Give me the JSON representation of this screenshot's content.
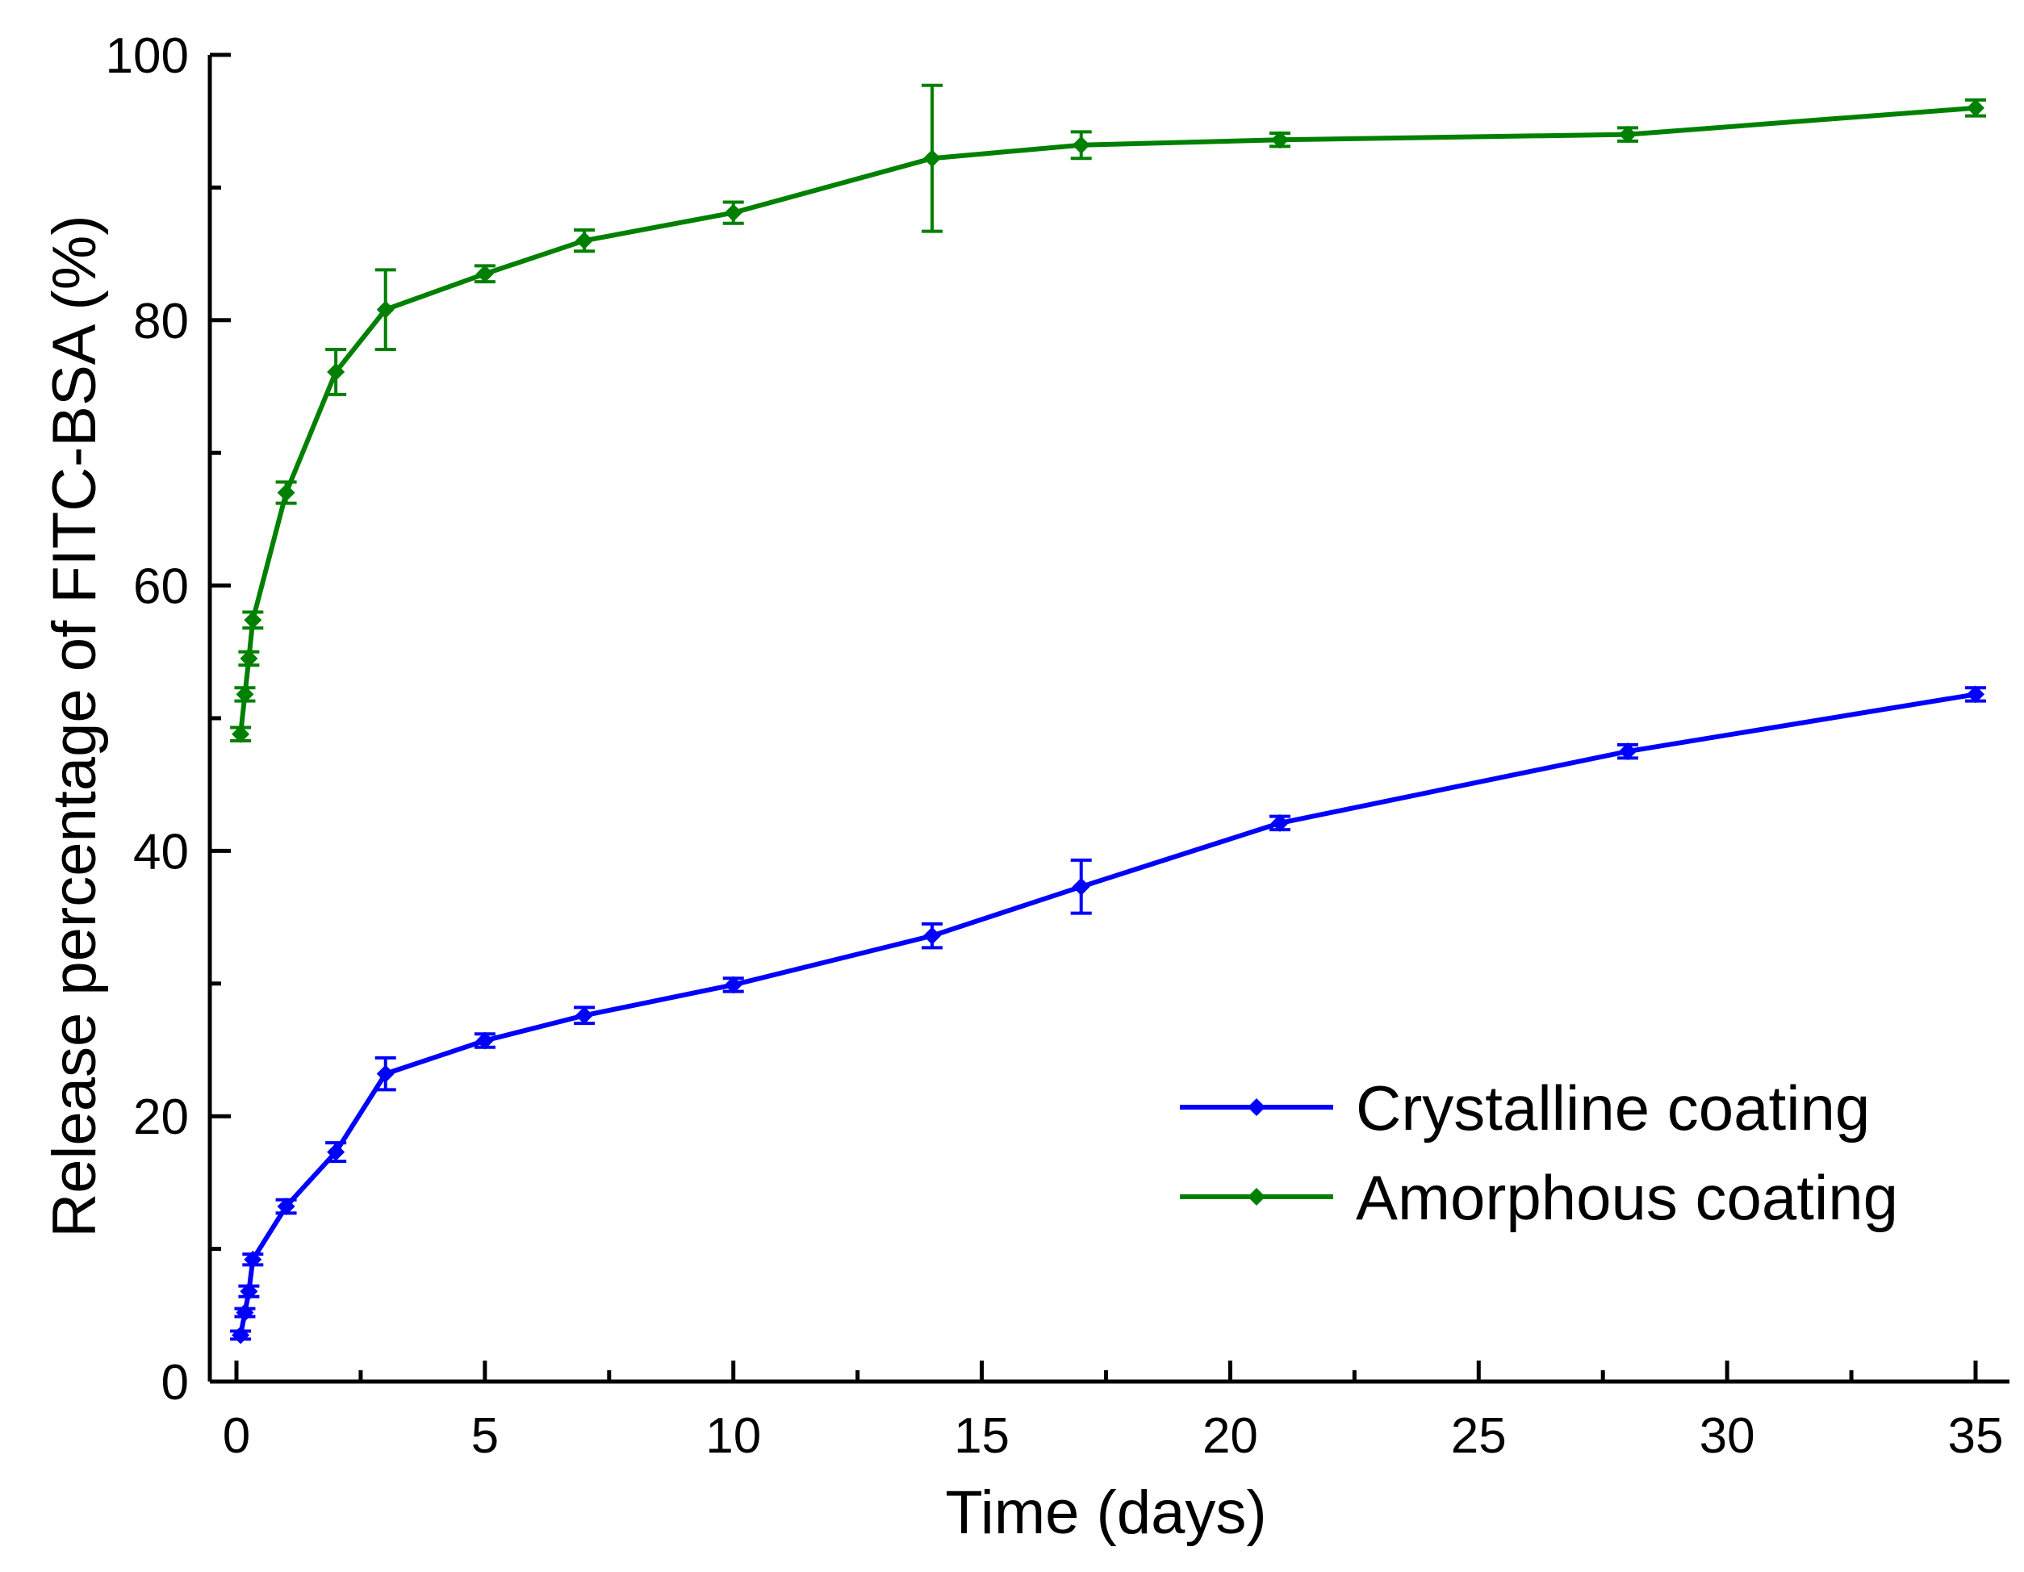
{
  "chart_data": {
    "type": "line",
    "title": "",
    "xlabel": "Time (days)",
    "ylabel": "Release percentage of FITC-BSA (%)",
    "xlim": [
      -0.5,
      35
    ],
    "ylim": [
      0,
      100
    ],
    "x_ticks": [
      0,
      5,
      10,
      15,
      20,
      25,
      30,
      35
    ],
    "y_ticks": [
      0,
      20,
      40,
      60,
      80,
      100
    ],
    "grid": false,
    "legend_position": "bottom-right",
    "series": [
      {
        "name": "Crystalline coating",
        "color": "#0000ff",
        "marker": "diamond",
        "points": [
          {
            "x": 0.083,
            "y": 3.5,
            "err": 0.3
          },
          {
            "x": 0.17,
            "y": 5.2,
            "err": 0.3
          },
          {
            "x": 0.25,
            "y": 6.8,
            "err": 0.4
          },
          {
            "x": 0.33,
            "y": 9.2,
            "err": 0.4
          },
          {
            "x": 1,
            "y": 13.2,
            "err": 0.5
          },
          {
            "x": 2,
            "y": 17.3,
            "err": 0.7
          },
          {
            "x": 3,
            "y": 23.2,
            "err": 1.2
          },
          {
            "x": 5,
            "y": 25.7,
            "err": 0.5
          },
          {
            "x": 7,
            "y": 27.6,
            "err": 0.6
          },
          {
            "x": 10,
            "y": 29.9,
            "err": 0.5
          },
          {
            "x": 14,
            "y": 33.6,
            "err": 0.9
          },
          {
            "x": 17,
            "y": 37.3,
            "err": 2.0
          },
          {
            "x": 21,
            "y": 42.1,
            "err": 0.5
          },
          {
            "x": 28,
            "y": 47.5,
            "err": 0.5
          },
          {
            "x": 35,
            "y": 51.8,
            "err": 0.5
          }
        ]
      },
      {
        "name": "Amorphous coating",
        "color": "#008000",
        "marker": "diamond",
        "points": [
          {
            "x": 0.083,
            "y": 48.8,
            "err": 0.5
          },
          {
            "x": 0.17,
            "y": 51.8,
            "err": 0.5
          },
          {
            "x": 0.25,
            "y": 54.5,
            "err": 0.5
          },
          {
            "x": 0.33,
            "y": 57.4,
            "err": 0.6
          },
          {
            "x": 1,
            "y": 67.0,
            "err": 0.8
          },
          {
            "x": 2,
            "y": 76.1,
            "err": 1.7
          },
          {
            "x": 3,
            "y": 80.8,
            "err": 3.0
          },
          {
            "x": 5,
            "y": 83.5,
            "err": 0.6
          },
          {
            "x": 7,
            "y": 86.0,
            "err": 0.8
          },
          {
            "x": 10,
            "y": 88.1,
            "err": 0.8
          },
          {
            "x": 14,
            "y": 92.2,
            "err": 5.5
          },
          {
            "x": 17,
            "y": 93.2,
            "err": 1.0
          },
          {
            "x": 21,
            "y": 93.6,
            "err": 0.5
          },
          {
            "x": 28,
            "y": 94.0,
            "err": 0.5
          },
          {
            "x": 35,
            "y": 96.0,
            "err": 0.6
          }
        ]
      }
    ]
  }
}
